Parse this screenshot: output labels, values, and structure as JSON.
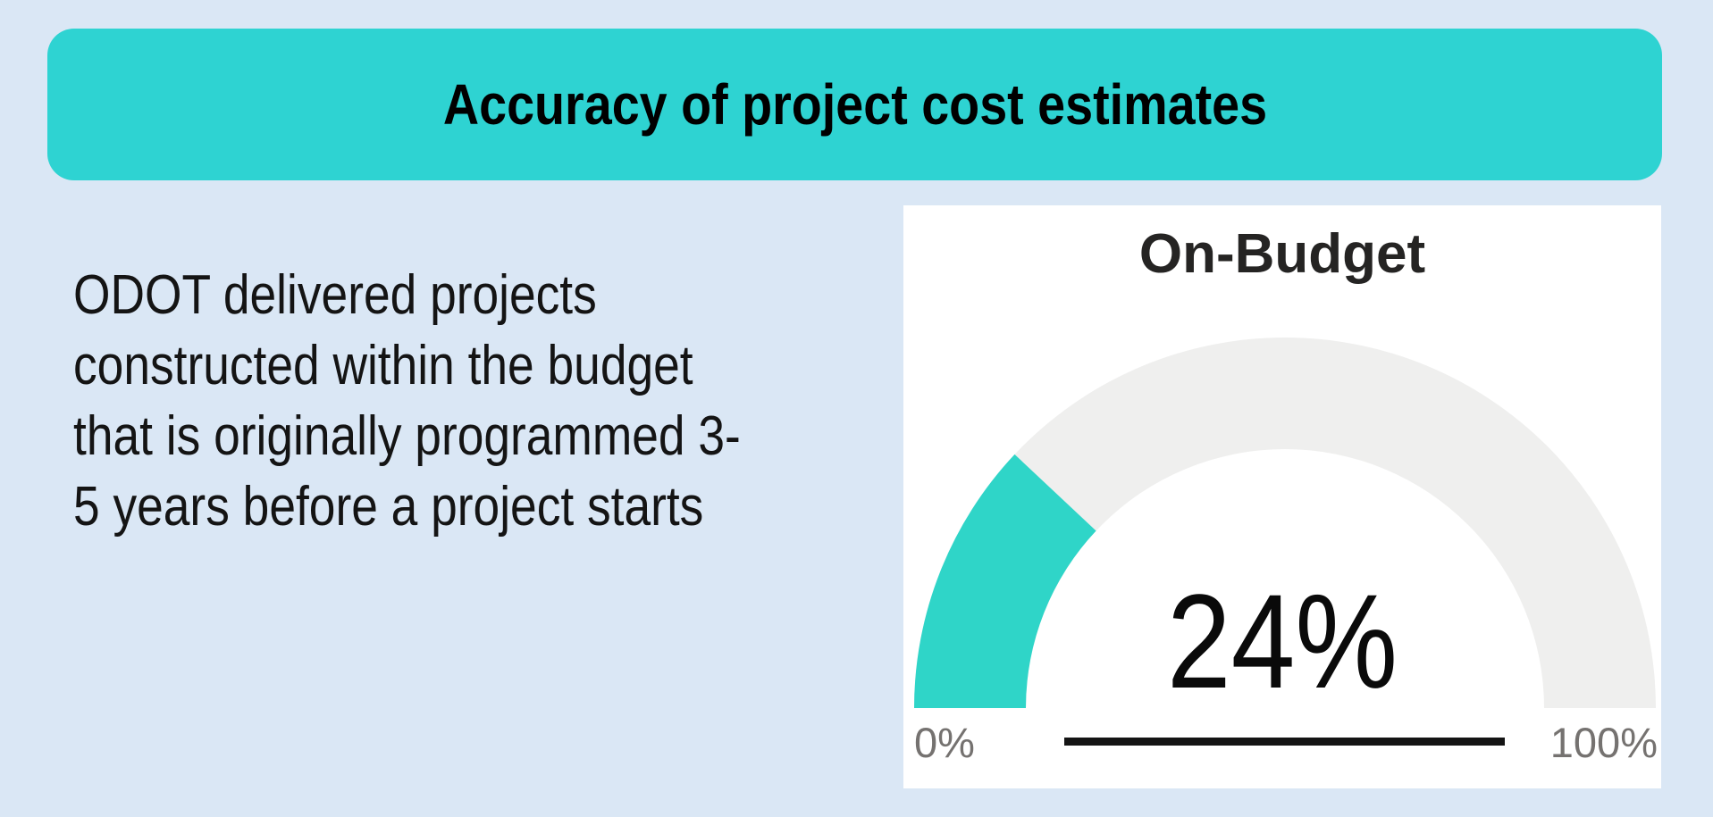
{
  "page": {
    "background_color": "#dae7f5"
  },
  "header": {
    "title": "Accuracy of project cost estimates",
    "background_color": "#2ed3d2",
    "text_color": "#000000"
  },
  "description": {
    "full_text": "ODOT delivered projects constructed within the budget that is originally programmed 3-5 years before a project starts",
    "lines": [
      "ODOT delivered projects",
      "constructed within the budget",
      "that is originally programmed 3-",
      "5 years before a project starts"
    ]
  },
  "chart_data": {
    "type": "gauge",
    "title": "On-Budget",
    "value": 24,
    "unit": "%",
    "min": 0,
    "max": 100,
    "callout": "24%",
    "min_label": "0%",
    "max_label": "100%",
    "fill_color": "#2fd5c8",
    "track_color": "#efefee",
    "layout": {
      "shape": "semicircle",
      "start_angle_deg": 180,
      "end_angle_deg": 0,
      "legend": "none",
      "grid": false
    }
  }
}
